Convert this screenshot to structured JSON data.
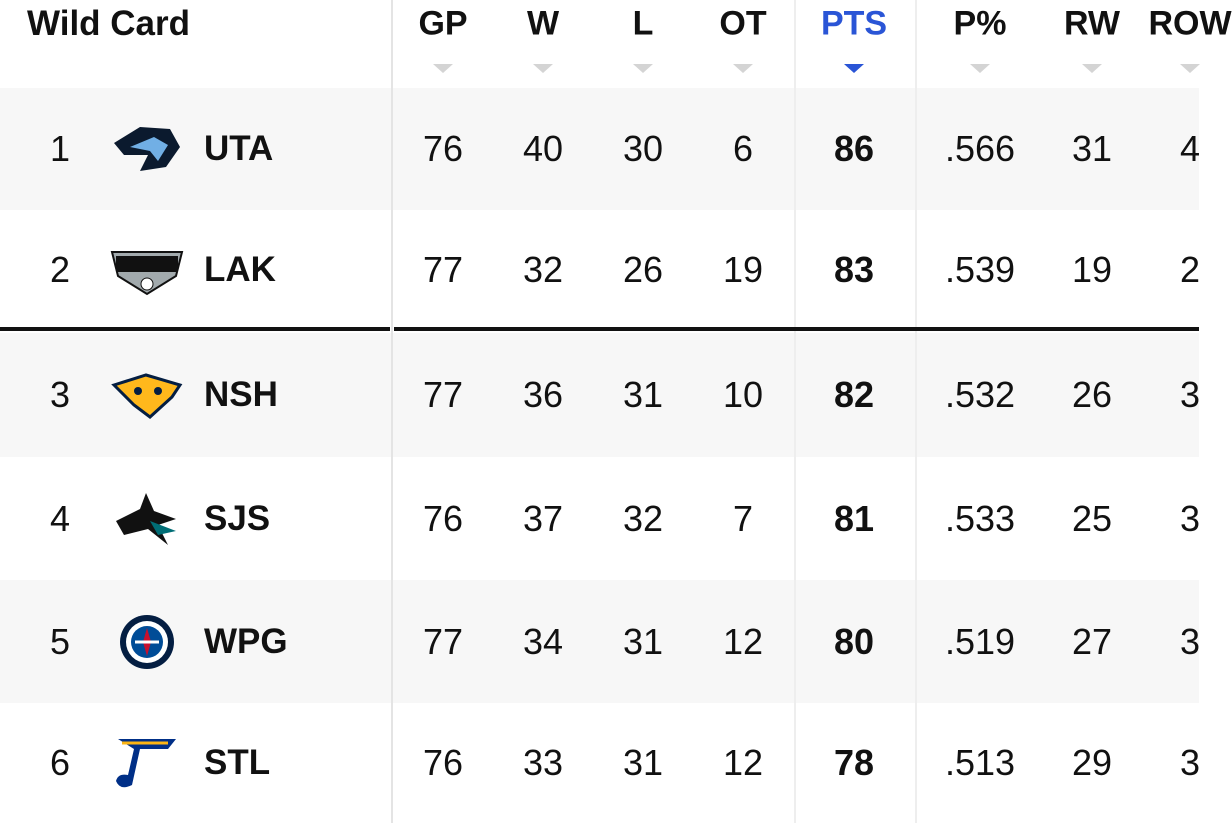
{
  "header": {
    "title": "Wild Card"
  },
  "table": {
    "columns": [
      "GP",
      "W",
      "L",
      "OT",
      "PTS",
      "P%",
      "RW",
      "ROW"
    ],
    "rows": [
      {
        "rank": 1,
        "team": "UTA",
        "stats": [
          76,
          40,
          30,
          6,
          86,
          ".566",
          31,
          4
        ]
      },
      {
        "rank": 2,
        "team": "LAK",
        "stats": [
          77,
          32,
          26,
          19,
          83,
          ".539",
          19,
          2
        ]
      },
      {
        "rank": 3,
        "team": "NSH",
        "stats": [
          77,
          36,
          31,
          10,
          82,
          ".532",
          26,
          3
        ]
      },
      {
        "rank": 4,
        "team": "SJS",
        "stats": [
          76,
          37,
          32,
          7,
          81,
          ".533",
          25,
          3
        ]
      },
      {
        "rank": 5,
        "team": "WPG",
        "stats": [
          77,
          34,
          31,
          12,
          80,
          ".519",
          27,
          3
        ]
      },
      {
        "rank": 6,
        "team": "STL",
        "stats": [
          76,
          33,
          31,
          12,
          78,
          ".513",
          29,
          3
        ]
      }
    ]
  }
}
